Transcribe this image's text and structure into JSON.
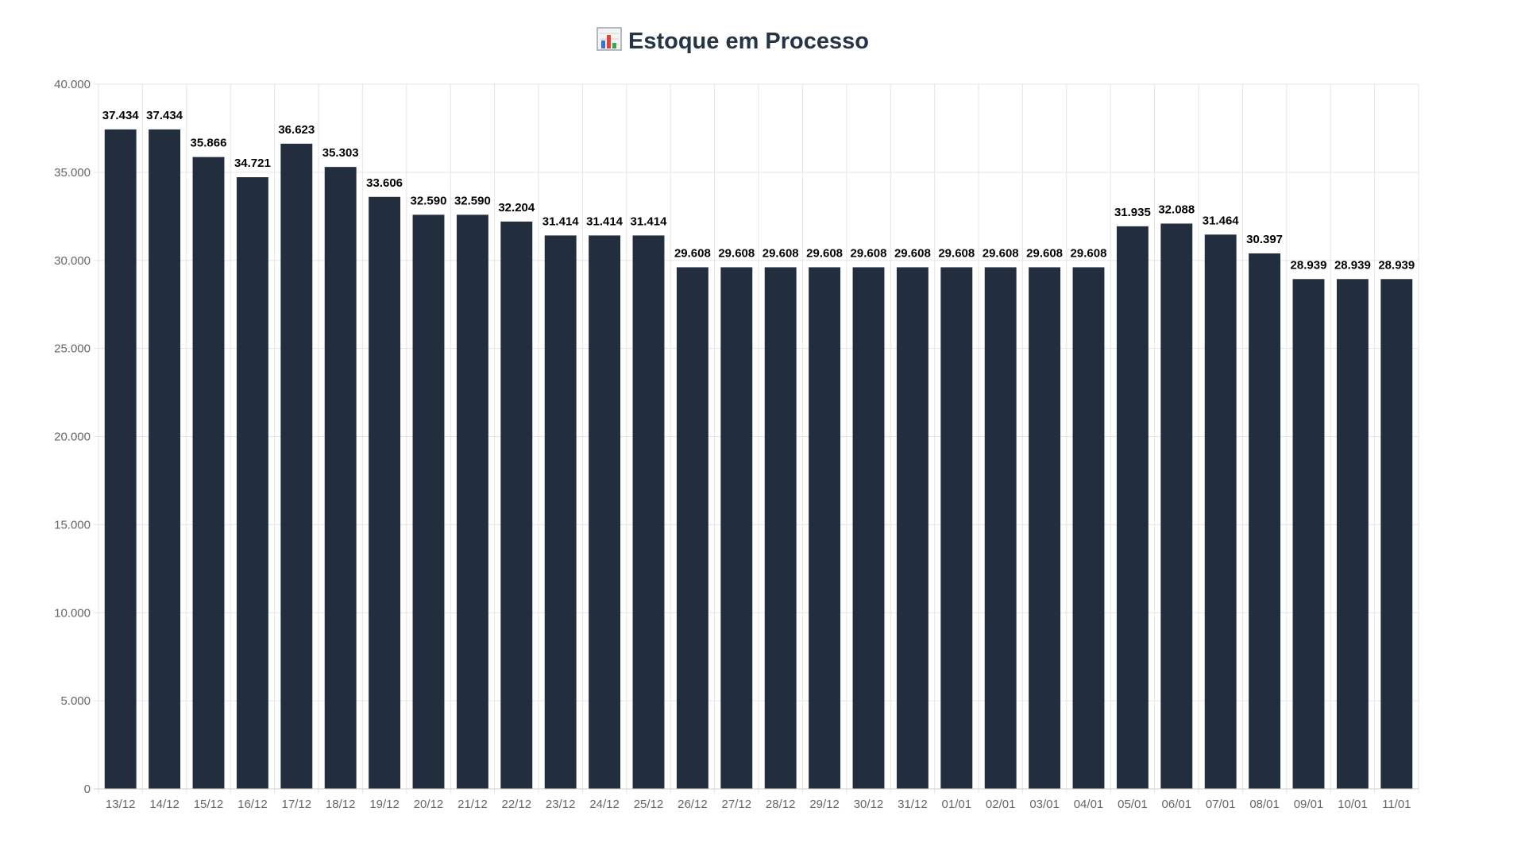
{
  "chart_data": {
    "type": "bar",
    "title": "Estoque em Processo",
    "title_icon": "bar-chart-icon",
    "xlabel": "",
    "ylabel": "",
    "ylim": [
      0,
      40000
    ],
    "y_ticks": [
      {
        "value": 0,
        "label": "0"
      },
      {
        "value": 5000,
        "label": "5.000"
      },
      {
        "value": 10000,
        "label": "10.000"
      },
      {
        "value": 15000,
        "label": "15.000"
      },
      {
        "value": 20000,
        "label": "20.000"
      },
      {
        "value": 25000,
        "label": "25.000"
      },
      {
        "value": 30000,
        "label": "30.000"
      },
      {
        "value": 35000,
        "label": "35.000"
      },
      {
        "value": 40000,
        "label": "40.000"
      }
    ],
    "grid": true,
    "legend": "none",
    "bar_color": "#222e3d",
    "grid_color": "#e5e5e5",
    "categories": [
      "13/12",
      "14/12",
      "15/12",
      "16/12",
      "17/12",
      "18/12",
      "19/12",
      "20/12",
      "21/12",
      "22/12",
      "23/12",
      "24/12",
      "25/12",
      "26/12",
      "27/12",
      "28/12",
      "29/12",
      "30/12",
      "31/12",
      "01/01",
      "02/01",
      "03/01",
      "04/01",
      "05/01",
      "06/01",
      "07/01",
      "08/01",
      "09/01",
      "10/01",
      "11/01"
    ],
    "values": [
      37434,
      37434,
      35866,
      34721,
      36623,
      35303,
      33606,
      32590,
      32590,
      32204,
      31414,
      31414,
      31414,
      29608,
      29608,
      29608,
      29608,
      29608,
      29608,
      29608,
      29608,
      29608,
      29608,
      31935,
      32088,
      31464,
      30397,
      28939,
      28939,
      28939
    ],
    "value_labels": [
      "37.434",
      "37.434",
      "35.866",
      "34.721",
      "36.623",
      "35.303",
      "33.606",
      "32.590",
      "32.590",
      "32.204",
      "31.414",
      "31.414",
      "31.414",
      "29.608",
      "29.608",
      "29.608",
      "29.608",
      "29.608",
      "29.608",
      "29.608",
      "29.608",
      "29.608",
      "29.608",
      "31.935",
      "32.088",
      "31.464",
      "30.397",
      "28.939",
      "28.939",
      "28.939"
    ]
  }
}
